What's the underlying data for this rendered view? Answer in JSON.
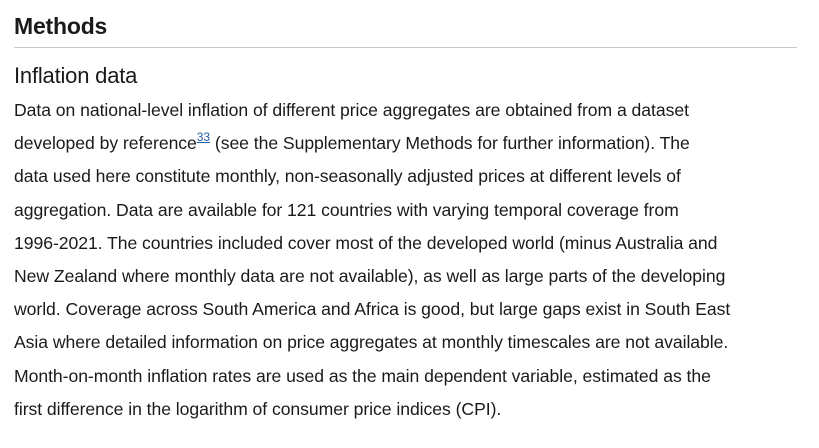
{
  "section": {
    "title": "Methods"
  },
  "subsection": {
    "title": "Inflation data"
  },
  "paragraph": {
    "line1": "Data on national-level inflation of different price aggregates are obtained from a dataset",
    "line2_before": "developed by reference",
    "ref": "33",
    "line2_after": " (see the Supplementary Methods for further information). The",
    "line3": "data used here constitute monthly, non-seasonally adjusted prices at different levels of",
    "line4": "aggregation. Data are available for 121 countries with varying temporal coverage from",
    "line5": "1996-2021. The countries included cover most of the developed world (minus Australia and",
    "line6": "New Zealand where monthly data are not available), as well as large parts of the developing",
    "line7": "world. Coverage across South America and Africa is good, but large gaps exist in South East",
    "line8": "Asia where detailed information on price aggregates at monthly timescales are not available.",
    "line9": "Month-on-month inflation rates are used as the main dependent variable, estimated as the",
    "line10": "first difference in the logarithm of consumer price indices (CPI)."
  }
}
